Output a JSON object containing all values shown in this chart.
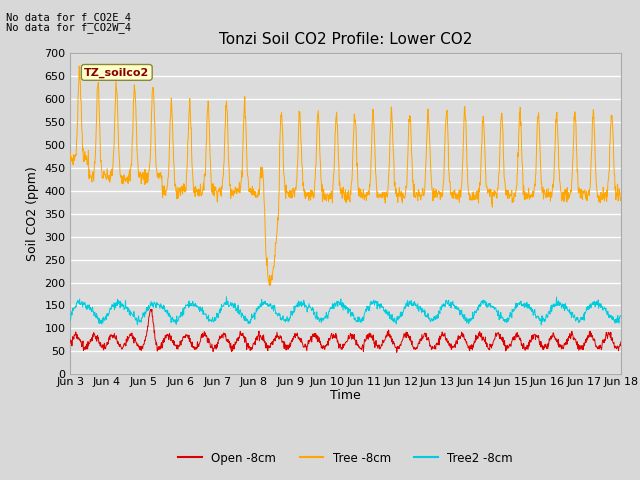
{
  "title": "Tonzi Soil CO2 Profile: Lower CO2",
  "ylabel": "Soil CO2 (ppm)",
  "xlabel": "Time",
  "top_text_line1": "No data for f_CO2E_4",
  "top_text_line2": "No data for f_CO2W_4",
  "watermark": "TZ_soilco2",
  "ylim": [
    0,
    700
  ],
  "yticks": [
    0,
    50,
    100,
    150,
    200,
    250,
    300,
    350,
    400,
    450,
    500,
    550,
    600,
    650,
    700
  ],
  "xtick_labels": [
    "Jun 3",
    "Jun 4",
    "Jun 5",
    "Jun 6",
    "Jun 7",
    "Jun 8",
    "Jun 9",
    "Jun 10",
    "Jun 11",
    "Jun 12",
    "Jun 13",
    "Jun 14",
    "Jun 15",
    "Jun 16",
    "Jun 17",
    "Jun 18"
  ],
  "legend_labels": [
    "Open -8cm",
    "Tree -8cm",
    "Tree2 -8cm"
  ],
  "bg_color": "#d8d8d8",
  "plot_bg_color": "#dcdcdc",
  "grid_color": "#ffffff",
  "open_color": "#dd0000",
  "tree_color": "#ffa500",
  "tree2_color": "#00ccdd",
  "title_fontsize": 11,
  "label_fontsize": 8,
  "axis_label_fontsize": 9
}
